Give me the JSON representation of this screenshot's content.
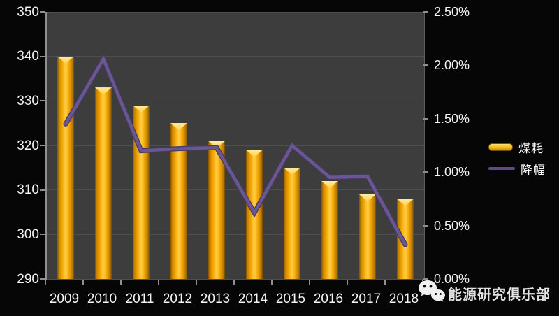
{
  "chart_data": {
    "type": "combo",
    "categories": [
      "2009",
      "2010",
      "2011",
      "2012",
      "2013",
      "2014",
      "2015",
      "2016",
      "2017",
      "2018"
    ],
    "series": [
      {
        "name": "煤耗",
        "type": "bar",
        "axis": "left",
        "color": "#F5AD00",
        "values": [
          340,
          333,
          329,
          325,
          321,
          319,
          315,
          312,
          309,
          308
        ]
      },
      {
        "name": "降幅",
        "type": "line",
        "axis": "right",
        "unit": "%",
        "color": "#5D4B85",
        "values": [
          1.45,
          2.06,
          1.2,
          1.22,
          1.23,
          0.62,
          1.25,
          0.95,
          0.96,
          0.32
        ]
      }
    ],
    "left_axis": {
      "min": 290,
      "max": 350,
      "step": 10,
      "ticks": [
        "350",
        "340",
        "330",
        "320",
        "310",
        "300",
        "290"
      ]
    },
    "right_axis": {
      "min": 0,
      "max": 2.5,
      "step": 0.5,
      "ticks": [
        "2.50%",
        "2.00%",
        "1.50%",
        "1.00%",
        "0.50%",
        "0.00%"
      ]
    },
    "legend": [
      {
        "label": "煤耗",
        "swatch": "bar"
      },
      {
        "label": "降幅",
        "swatch": "line"
      }
    ],
    "legend_position": "right",
    "grid": true,
    "title": ""
  },
  "watermark": {
    "icon": "wechat-icon",
    "text": "能源研究俱乐部"
  },
  "colors": {
    "background": "#060606",
    "plot_background": "#3D3D3D",
    "gridline": "#4F4F4F",
    "axis": "#8F8F8F",
    "axis_text": "#F2F2F2",
    "bar_gold": "#FFC93C",
    "line_purple": "#5D4B85"
  }
}
